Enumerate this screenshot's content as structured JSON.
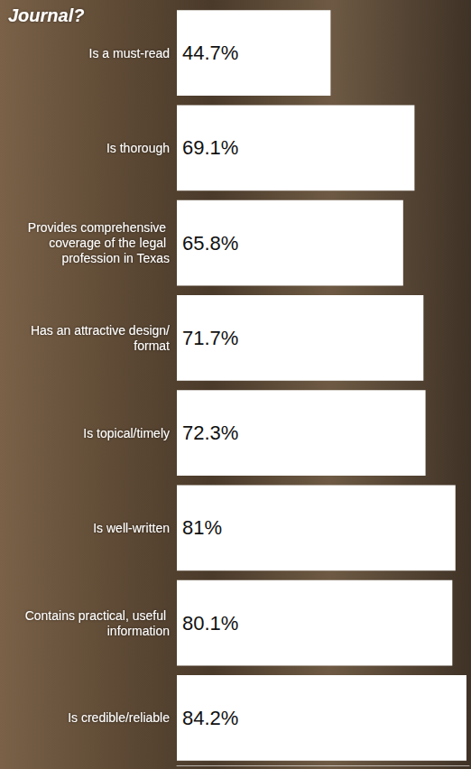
{
  "chart_data": {
    "type": "bar",
    "title": "Journal?",
    "orientation": "horizontal",
    "categories": [
      "Is a must-read",
      "Is thorough",
      "Provides comprehensive coverage of the legal profession in Texas",
      "Has an attractive design/format",
      "Is topical/timely",
      "Is well-written",
      "Contains practical, useful information",
      "Is credible/reliable"
    ],
    "values": [
      44.7,
      69.1,
      65.8,
      71.7,
      72.3,
      81,
      80.1,
      84.2
    ],
    "value_labels": [
      "44.7%",
      "69.1%",
      "65.8%",
      "71.7%",
      "72.3%",
      "81%",
      "80.1%",
      "84.2%"
    ],
    "color": "#ffffff",
    "xlim": [
      0,
      85
    ],
    "grid": false,
    "data_labels": true,
    "tick_labels": "y"
  }
}
